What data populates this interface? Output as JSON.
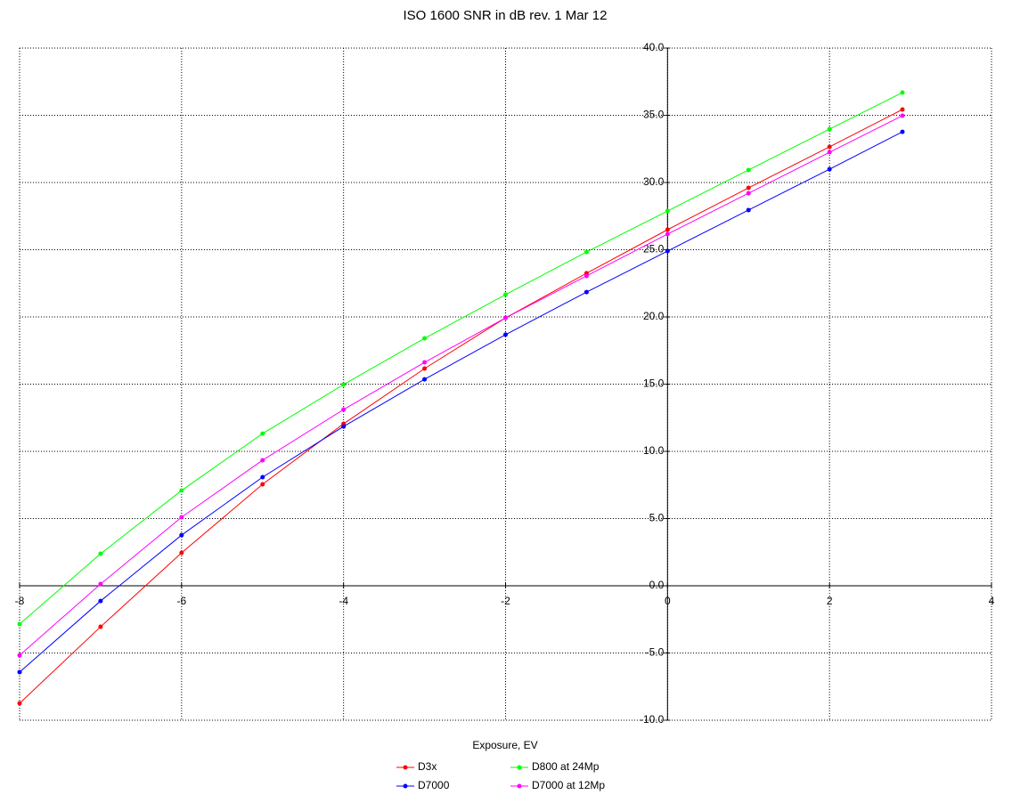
{
  "chart_data": {
    "type": "line",
    "title": "ISO 1600 SNR in dB rev. 1 Mar 12",
    "x_label": "Exposure, EV",
    "x": [
      -8,
      -7,
      -6,
      -5,
      -4,
      -3,
      -2,
      -1,
      0,
      1,
      2,
      2.9
    ],
    "xlim": [
      -8,
      4
    ],
    "xticks": [
      -8,
      -6,
      -4,
      -2,
      0,
      2,
      4
    ],
    "ylim": [
      -10,
      40
    ],
    "yticks": [
      {
        "value": -10,
        "label": "-10.0"
      },
      {
        "value": -5,
        "label": "-5.0"
      },
      {
        "value": 0,
        "label": "0.0"
      },
      {
        "value": 5,
        "label": "5.0"
      },
      {
        "value": 10,
        "label": "10.0"
      },
      {
        "value": 15,
        "label": "15.0"
      },
      {
        "value": 20,
        "label": "20.0"
      },
      {
        "value": 25,
        "label": "25.0"
      },
      {
        "value": 30,
        "label": "30.0"
      },
      {
        "value": 35,
        "label": "35.0"
      },
      {
        "value": 40,
        "label": "40.0"
      }
    ],
    "grid": true,
    "legend": "bottom",
    "series": [
      {
        "name": "D3x",
        "color": "#ff0000",
        "values": [
          -8.74,
          -3.05,
          2.45,
          7.55,
          12.05,
          16.16,
          19.93,
          23.25,
          26.49,
          29.6,
          32.65,
          35.43
        ]
      },
      {
        "name": "D7000",
        "color": "#0000ff",
        "values": [
          -6.42,
          -1.13,
          3.77,
          8.08,
          11.85,
          15.36,
          18.68,
          21.85,
          24.9,
          27.95,
          30.99,
          33.77
        ]
      },
      {
        "name": "D800 at 24Mp",
        "color": "#00ff00",
        "values": [
          -2.85,
          2.38,
          7.09,
          11.32,
          14.97,
          18.41,
          21.66,
          24.83,
          27.88,
          30.93,
          33.97,
          36.69
        ]
      },
      {
        "name": "D7000 at 12Mp",
        "color": "#ff00ff",
        "values": [
          -5.17,
          0.13,
          5.1,
          9.34,
          13.11,
          16.62,
          19.93,
          23.05,
          26.16,
          29.2,
          32.25,
          34.97
        ]
      }
    ]
  }
}
